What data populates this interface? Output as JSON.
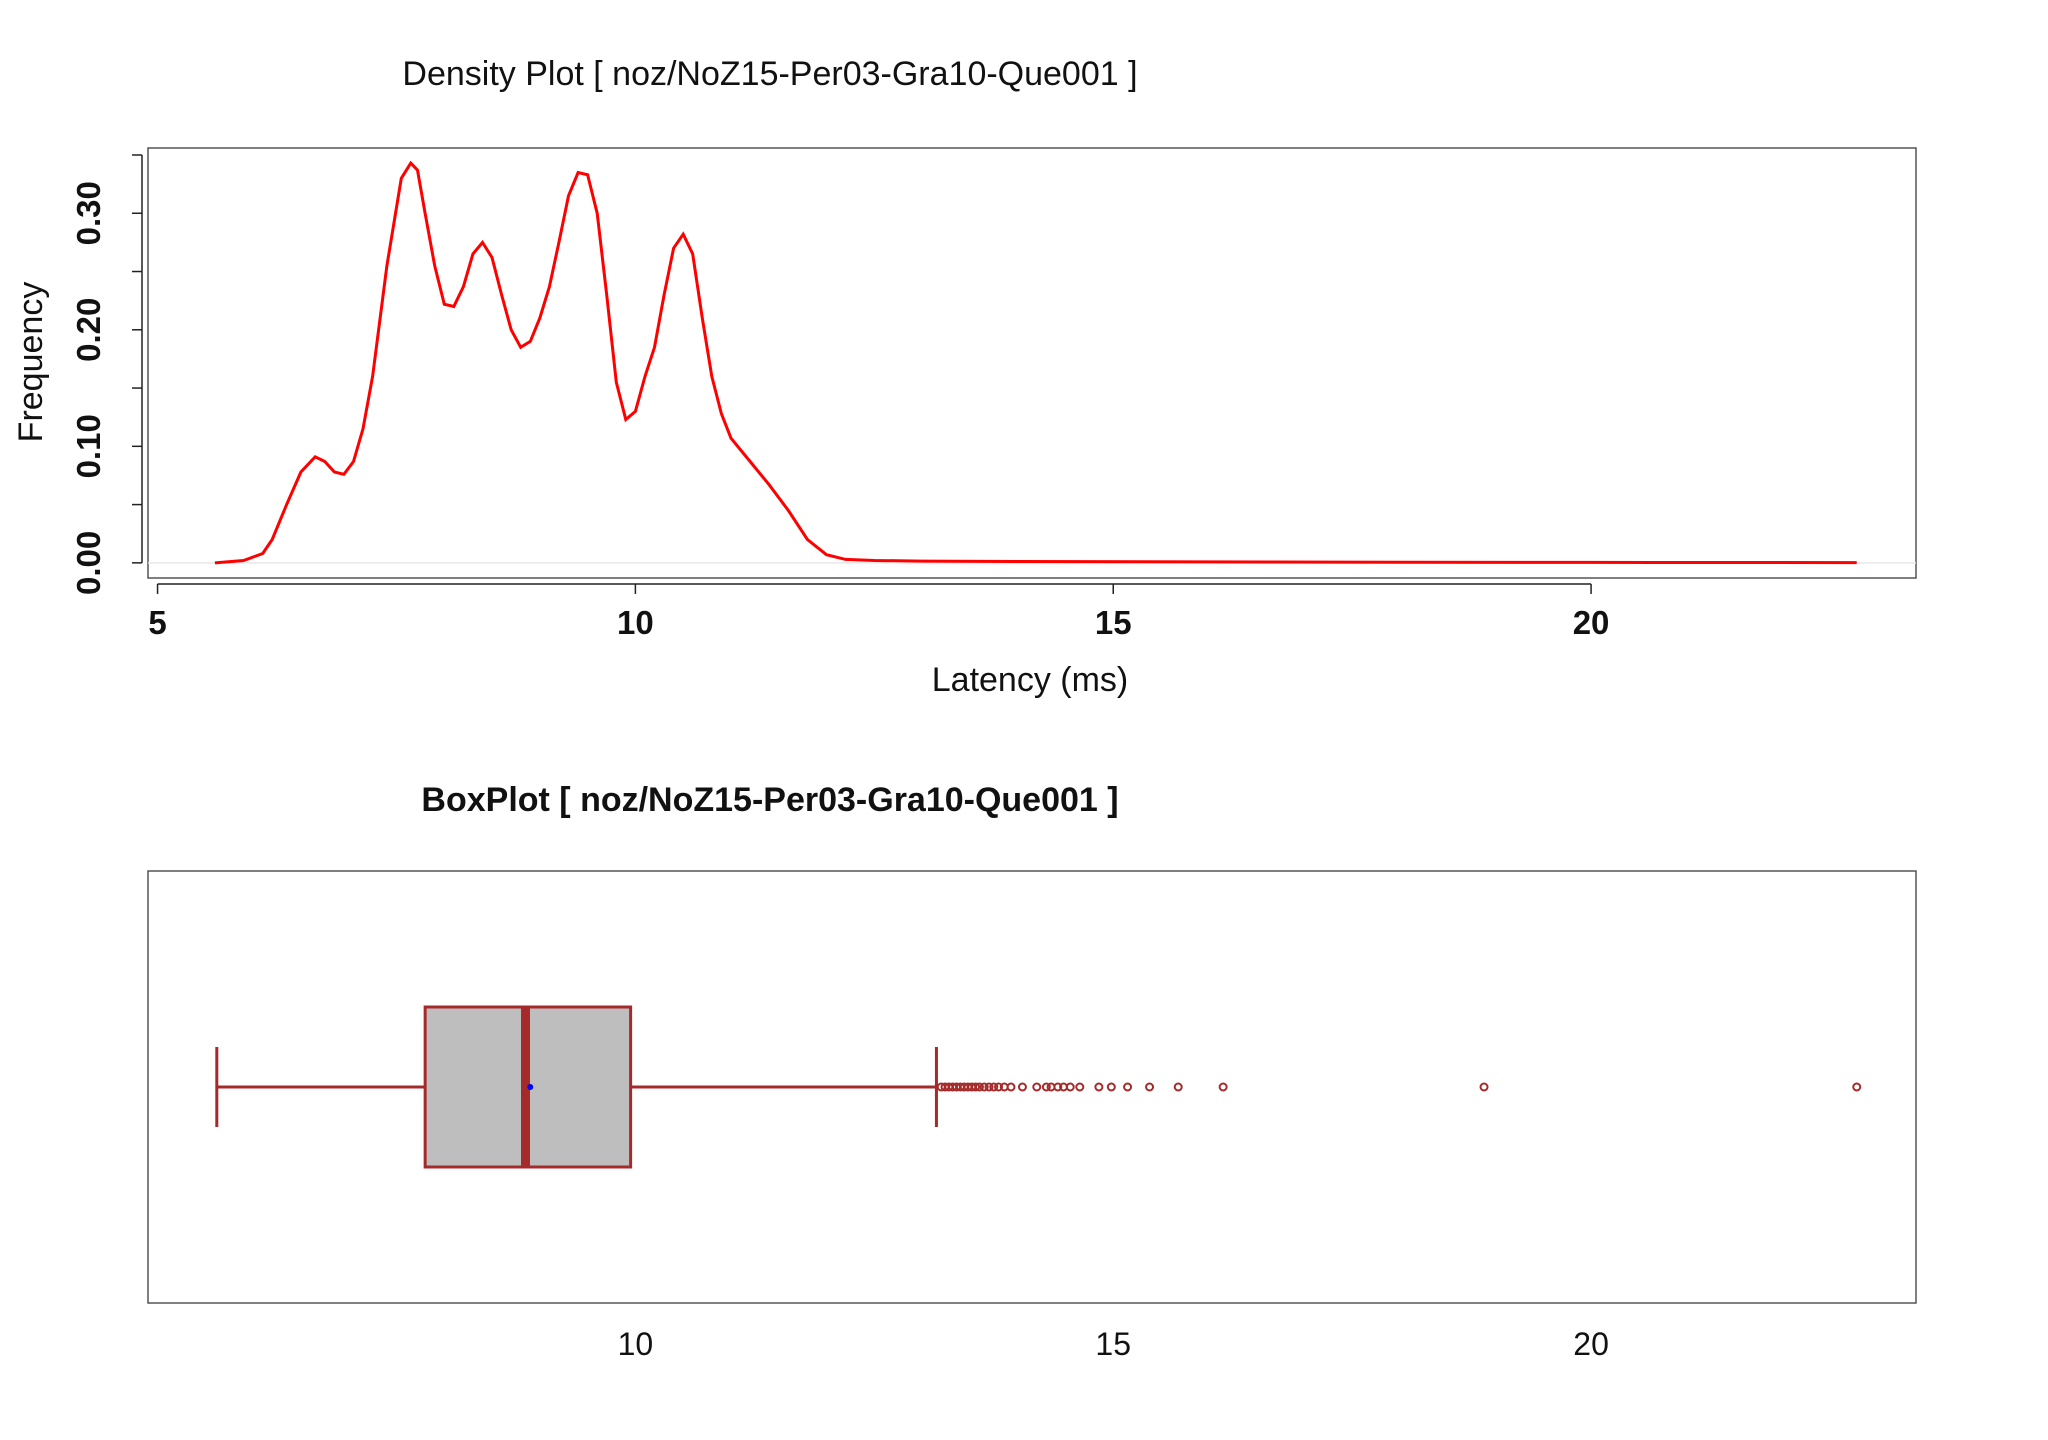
{
  "colors": {
    "density_line": "#ff0000",
    "box_border": "#a52a2a",
    "box_fill": "#bebebe",
    "median": "#a52a2a",
    "mean_point": "#0000ff",
    "outlier": "#a52a2a",
    "frame": "#555555",
    "zero_line": "#e8e8e8"
  },
  "chart_data": [
    {
      "type": "line",
      "title": "Density Plot [ noz/NoZ15-Per03-Gra10-Que001 ]",
      "xlabel": "Latency (ms)",
      "ylabel": "Frequency",
      "xlim": [
        4.9,
        23.4
      ],
      "ylim": [
        -0.013,
        0.356
      ],
      "x_ticks": [
        "5",
        "10",
        "15",
        "20"
      ],
      "x_tick_values": [
        5,
        10,
        15,
        20
      ],
      "y_ticks": [
        "0.00",
        "0.10",
        "0.20",
        "0.30"
      ],
      "y_tick_values": [
        0.0,
        0.1,
        0.2,
        0.3
      ],
      "y_minor_ticks": [
        0.05,
        0.15,
        0.25,
        0.35
      ],
      "grid": false,
      "series": [
        {
          "x": [
            5.6,
            5.9,
            6.1,
            6.2,
            6.35,
            6.5,
            6.65,
            6.75,
            6.85,
            6.95,
            7.05,
            7.15,
            7.25,
            7.4,
            7.55,
            7.65,
            7.72,
            7.8,
            7.9,
            8.0,
            8.1,
            8.2,
            8.3,
            8.4,
            8.5,
            8.6,
            8.7,
            8.8,
            8.9,
            9.0,
            9.1,
            9.2,
            9.3,
            9.4,
            9.5,
            9.6,
            9.7,
            9.8,
            9.9,
            10.0,
            10.1,
            10.2,
            10.3,
            10.4,
            10.5,
            10.6,
            10.7,
            10.8,
            10.9,
            11.0,
            11.2,
            11.4,
            11.6,
            11.8,
            12.0,
            12.2,
            12.5,
            13.0,
            14.0,
            16.0,
            18.0,
            20.0,
            22.78
          ],
          "y": [
            0.0,
            0.002,
            0.008,
            0.02,
            0.05,
            0.078,
            0.091,
            0.087,
            0.078,
            0.076,
            0.087,
            0.115,
            0.16,
            0.255,
            0.33,
            0.343,
            0.337,
            0.3,
            0.255,
            0.222,
            0.22,
            0.237,
            0.265,
            0.275,
            0.262,
            0.23,
            0.2,
            0.185,
            0.19,
            0.21,
            0.237,
            0.275,
            0.315,
            0.335,
            0.333,
            0.3,
            0.23,
            0.155,
            0.123,
            0.13,
            0.16,
            0.185,
            0.23,
            0.27,
            0.282,
            0.265,
            0.21,
            0.16,
            0.128,
            0.107,
            0.087,
            0.067,
            0.045,
            0.02,
            0.007,
            0.003,
            0.002,
            0.0015,
            0.0012,
            0.0008,
            0.0006,
            0.0004,
            0.0002
          ]
        }
      ]
    },
    {
      "type": "box",
      "title": "BoxPlot [ noz/NoZ15-Per03-Gra10-Que001 ]",
      "xlim": [
        4.9,
        23.4
      ],
      "x_ticks": [
        "10",
        "15",
        "20"
      ],
      "x_tick_values": [
        10,
        15,
        20
      ],
      "whisker_low": 5.62,
      "q1": 7.8,
      "median": 8.85,
      "mean": 8.9,
      "q3": 9.95,
      "whisker_high": 13.15,
      "outliers": [
        13.2,
        13.24,
        13.28,
        13.32,
        13.36,
        13.4,
        13.44,
        13.48,
        13.52,
        13.56,
        13.6,
        13.65,
        13.7,
        13.75,
        13.8,
        13.86,
        13.93,
        14.05,
        14.2,
        14.3,
        14.35,
        14.42,
        14.48,
        14.55,
        14.65,
        14.85,
        14.98,
        15.15,
        15.38,
        15.68,
        16.15,
        18.88,
        22.78
      ]
    }
  ]
}
